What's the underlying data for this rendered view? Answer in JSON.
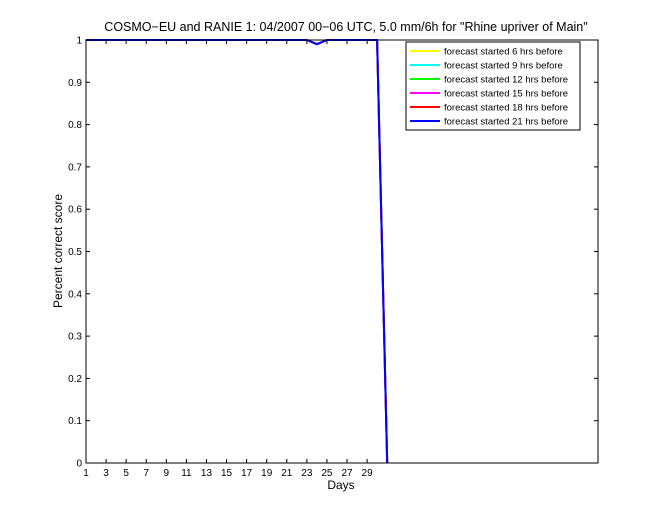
{
  "chart_data": {
    "type": "line",
    "title": "COSMO−EU and RANIE 1: 04/2007 00−06 UTC, 5.0 mm/6h for \"Rhine upriver of Main\"",
    "xlabel": "Days",
    "ylabel": "Percent correct score",
    "xlim": [
      1,
      52
    ],
    "ylim": [
      0,
      1
    ],
    "x_ticks": [
      1,
      3,
      5,
      7,
      9,
      11,
      13,
      15,
      17,
      19,
      21,
      23,
      25,
      27,
      29
    ],
    "y_ticks": [
      0,
      0.1,
      0.2,
      0.3,
      0.4,
      0.5,
      0.6,
      0.7,
      0.8,
      0.9,
      1
    ],
    "x_tick_labels": [
      "1",
      "3",
      "5",
      "7",
      "9",
      "11",
      "13",
      "15",
      "17",
      "19",
      "21",
      "23",
      "25",
      "27",
      "29"
    ],
    "y_tick_labels": [
      "0",
      "0.1",
      "0.2",
      "0.3",
      "0.4",
      "0.5",
      "0.6",
      "0.7",
      "0.8",
      "0.9",
      "1"
    ],
    "legend_position": "top-right",
    "grid": false,
    "series": [
      {
        "name": "forecast started 6 hrs before",
        "color": "#ffff00",
        "x": [
          1,
          23,
          24,
          25,
          30,
          31
        ],
        "y": [
          1,
          1,
          0.99,
          1,
          1,
          0
        ]
      },
      {
        "name": "forecast started 9 hrs before",
        "color": "#00ffff",
        "x": [
          1,
          23,
          24,
          25,
          30,
          31
        ],
        "y": [
          1,
          1,
          0.99,
          1,
          1,
          0
        ]
      },
      {
        "name": "forecast started 12 hrs before",
        "color": "#00ff00",
        "x": [
          1,
          23,
          24,
          25,
          30,
          31
        ],
        "y": [
          1,
          1,
          0.99,
          1,
          1,
          0
        ]
      },
      {
        "name": "forecast started 15 hrs before",
        "color": "#ff00ff",
        "x": [
          1,
          23,
          24,
          25,
          30,
          31
        ],
        "y": [
          1,
          1,
          0.99,
          1,
          1,
          0
        ]
      },
      {
        "name": "forecast started 18 hrs before",
        "color": "#ff0000",
        "x": [
          1,
          23,
          24,
          25,
          30,
          31
        ],
        "y": [
          1,
          1,
          0.99,
          1,
          1,
          0
        ]
      },
      {
        "name": "forecast started 21 hrs before",
        "color": "#0000ff",
        "x": [
          1,
          23,
          24,
          25,
          30,
          31
        ],
        "y": [
          1,
          1,
          0.99,
          1,
          1,
          0
        ]
      }
    ]
  }
}
